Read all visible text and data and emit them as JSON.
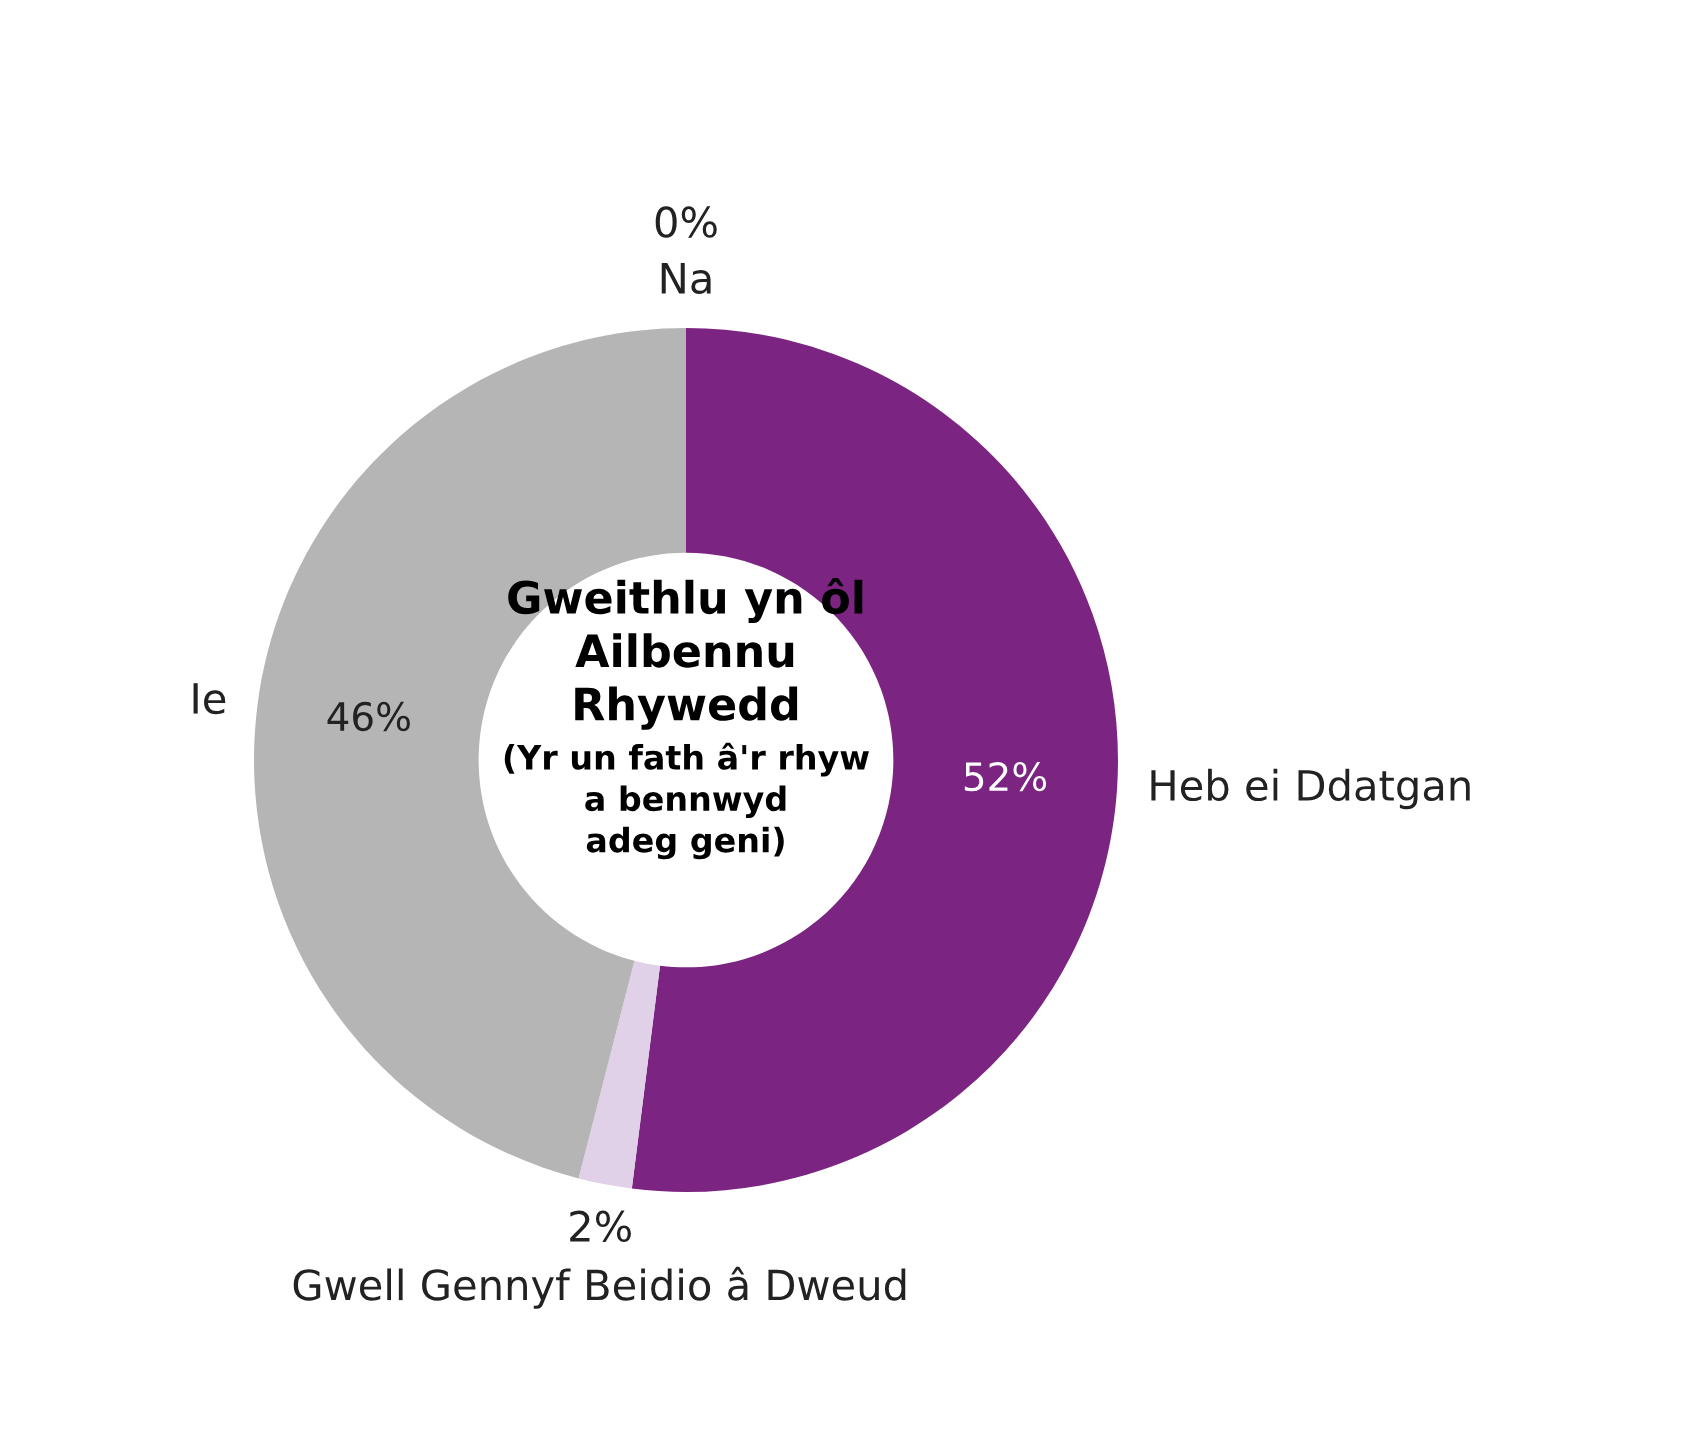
{
  "chart_data": {
    "type": "donut",
    "title": "Gweithlu yn ôl\nAilbennu\nRhywedd",
    "subtitle": "(Yr un fath â'r rhyw\na bennwyd\nadeg geni)",
    "categories": [
      "Na",
      "Heb ei Ddatgan",
      "Gwell Gennyf Beidio â Dweud",
      "Ie"
    ],
    "values": [
      0,
      52,
      2,
      46
    ],
    "value_labels": [
      "0%",
      "52%",
      "2%",
      "46%"
    ],
    "colors": [
      "#4b1650",
      "#7b2481",
      "#e0d0e8",
      "#b5b5b5"
    ],
    "legend": false
  }
}
